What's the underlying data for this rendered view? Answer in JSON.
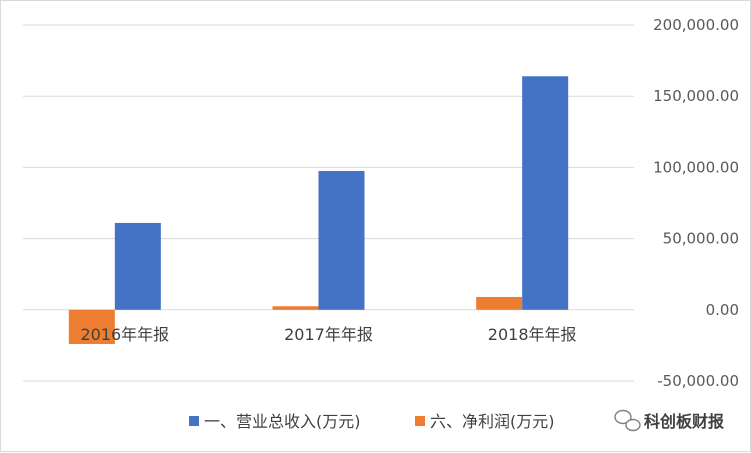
{
  "chart_data": {
    "type": "bar",
    "categories": [
      "2016年年报",
      "2017年年报",
      "2018年年报"
    ],
    "series": [
      {
        "name": "六、净利润(万元)",
        "color": "#ed7d31",
        "values": [
          -24000,
          2500,
          9000
        ]
      },
      {
        "name": "一、营业总收入(万元)",
        "color": "#4472c4",
        "values": [
          61000,
          97500,
          164000
        ]
      }
    ],
    "ylim": [
      -50000,
      200000
    ],
    "yticks": [
      "200,000.00",
      "150,000.00",
      "100,000.00",
      "50,000.00",
      "0.00",
      "-50,000.00"
    ],
    "ytick_values": [
      200000,
      150000,
      100000,
      50000,
      0,
      -50000
    ],
    "y_axis_position": "right",
    "grid": true,
    "legend_position": "bottom",
    "legend": [
      "一、营业总收入(万元)",
      "六、净利润(万元)"
    ]
  },
  "watermark": {
    "text": "科创板财报",
    "icon": "wechat-icon"
  }
}
